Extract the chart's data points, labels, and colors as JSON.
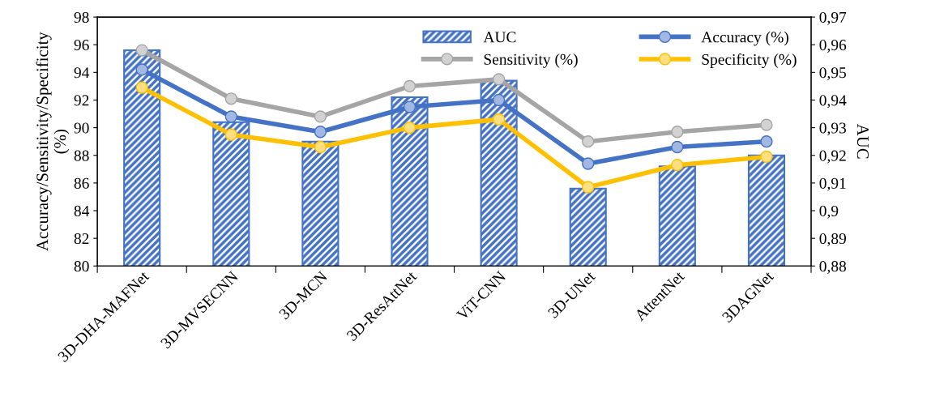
{
  "chart_data": {
    "type": "bar",
    "categories": [
      "3D-DHA-MAFNet",
      "3D-MVSECNN",
      "3D-MCN",
      "3D-ResAttNet",
      "ViT-CNN",
      "3D-UNet",
      "AttentNet",
      "3DAGNet"
    ],
    "ylabel": "Accuracy/Sensitivity/Specificity\n(%)",
    "y2label": "AUC",
    "series": [
      {
        "name": "AUC",
        "axis": "y2",
        "color": "#4472c4",
        "values": [
          0.958,
          0.932,
          0.925,
          0.941,
          0.947,
          0.908,
          0.916,
          0.92
        ]
      },
      {
        "name": "Accuracy (%)",
        "type": "line",
        "color": "#4472c4",
        "values": [
          94.2,
          90.8,
          89.7,
          91.5,
          92.0,
          87.4,
          88.6,
          89.0
        ]
      },
      {
        "name": "Sensitivity (%)",
        "type": "line",
        "color": "#a5a5a5",
        "values": [
          95.6,
          92.1,
          90.8,
          93.0,
          93.5,
          89.0,
          89.7,
          90.2
        ]
      },
      {
        "name": "Specificity (%)",
        "type": "line",
        "color": "#ffc000",
        "values": [
          92.9,
          89.5,
          88.6,
          90.0,
          90.6,
          85.7,
          87.3,
          87.9
        ]
      }
    ],
    "ylim": [
      80,
      98
    ],
    "yticks": [
      80,
      82,
      84,
      86,
      88,
      90,
      92,
      94,
      96,
      98
    ],
    "y2lim": [
      0.88,
      0.97
    ],
    "y2ticks": [
      {
        "value": 0.88,
        "label": "0,88"
      },
      {
        "value": 0.89,
        "label": "0,89"
      },
      {
        "value": 0.9,
        "label": "0,9"
      },
      {
        "value": 0.91,
        "label": "0,91"
      },
      {
        "value": 0.92,
        "label": "0,92"
      },
      {
        "value": 0.93,
        "label": "0,93"
      },
      {
        "value": 0.94,
        "label": "0,94"
      },
      {
        "value": 0.95,
        "label": "0,95"
      },
      {
        "value": 0.96,
        "label": "0,96"
      },
      {
        "value": 0.97,
        "label": "0,97"
      }
    ],
    "marker": "circle",
    "line_style": "solid",
    "legend": "top right",
    "grid": false
  }
}
